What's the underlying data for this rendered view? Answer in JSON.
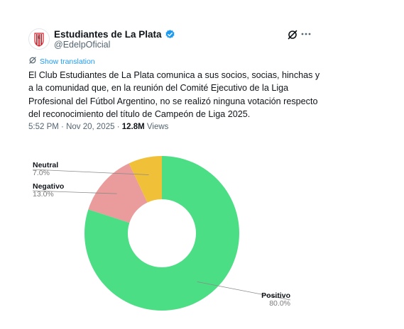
{
  "tweet": {
    "display_name": "Estudiantes de La Plata",
    "handle": "@EdelpOficial",
    "show_translation": "Show translation",
    "text_lines": [
      "El Club Estudiantes de La Plata comunica a sus socios, socias, hinchas y",
      "a la comunidad que, en la reunión del Comité Ejecutivo de la Liga",
      "Profesional del Fútbol Argentino, no se realizó ninguna votación respecto",
      "del reconocimiento del título de Campeón de Liga 2025."
    ],
    "time": "5:52 PM",
    "separator": "·",
    "date": "Nov 20, 2025",
    "views_count": "12.8M",
    "views_label": "Views",
    "icons": {
      "avatar": "club-crest",
      "verified": "verified-badge-icon",
      "grok": "grok-icon",
      "more": "more-icon",
      "translate": "translate-icon"
    },
    "colors": {
      "verified": "#1d9bf0",
      "link": "#1d9bf0",
      "crest_red": "#d4242c"
    }
  },
  "chart_data": {
    "type": "pie",
    "variant": "donut",
    "start": "top, clockwise",
    "slices": [
      {
        "label": "Positivo",
        "pct_text": "80.0%",
        "value": 80.0,
        "color": "#4cde85"
      },
      {
        "label": "Negativo",
        "pct_text": "13.0%",
        "value": 13.0,
        "color": "#ea9b9b"
      },
      {
        "label": "Neutral",
        "pct_text": "7.0%",
        "value": 7.0,
        "color": "#f0c038"
      }
    ]
  }
}
